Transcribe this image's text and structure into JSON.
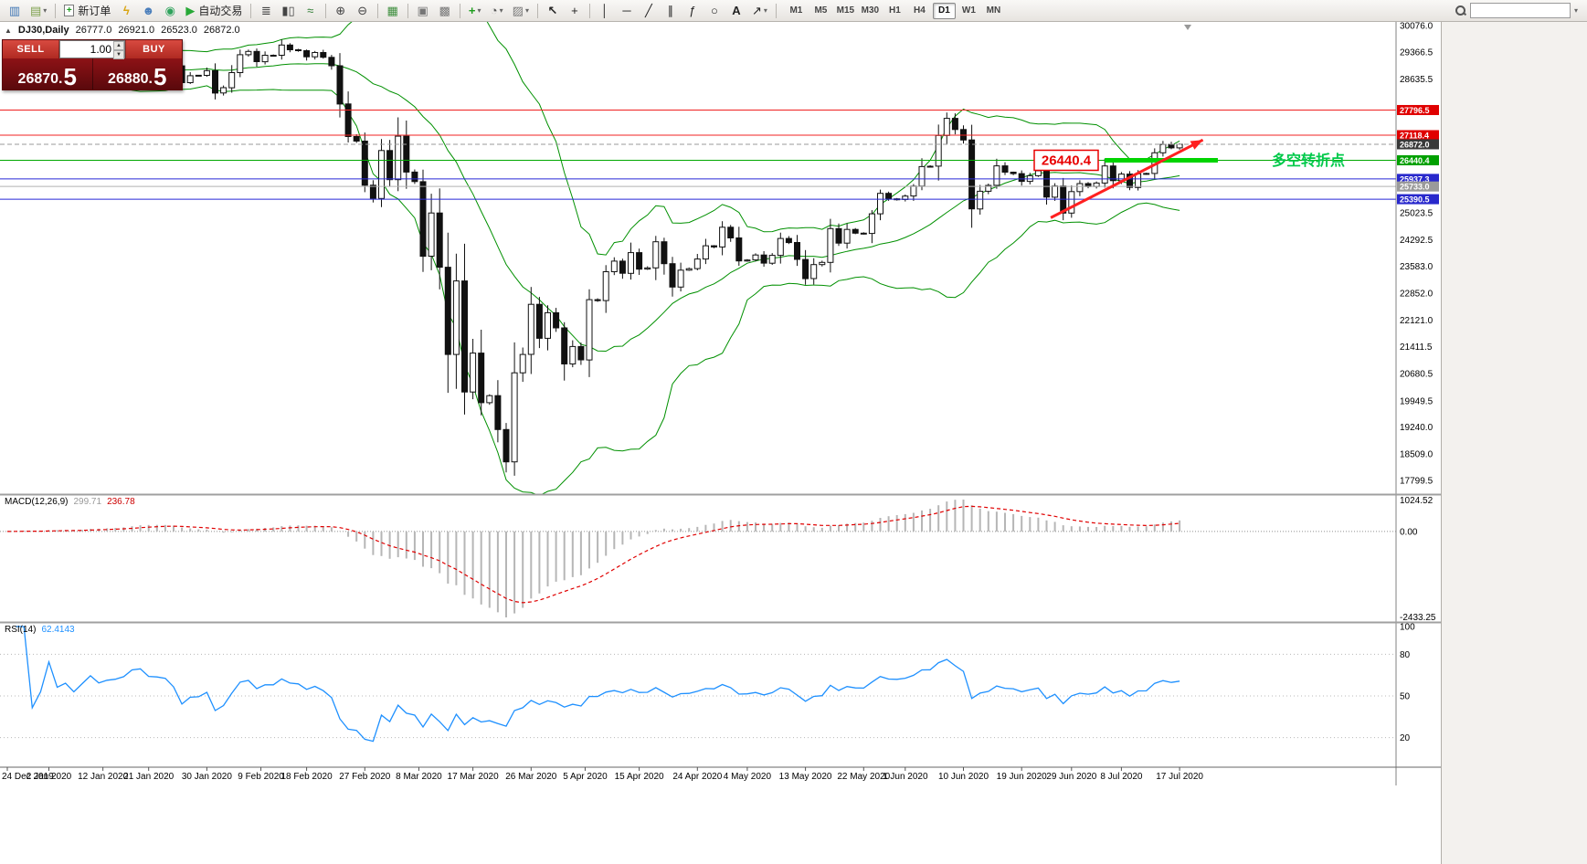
{
  "toolbar": {
    "new_order_label": "新订单",
    "autotrading_label": "自动交易",
    "timeframes": [
      "M1",
      "M5",
      "M15",
      "M30",
      "H1",
      "H4",
      "D1",
      "W1",
      "MN"
    ],
    "active_timeframe": "D1",
    "search_placeholder": ""
  },
  "chart": {
    "symbol_label": "DJ30,Daily",
    "ohlc": {
      "open": "26777.0",
      "high": "26921.0",
      "low": "26523.0",
      "close": "26872.0"
    },
    "trade_panel": {
      "sell_label": "SELL",
      "buy_label": "BUY",
      "volume": "1.00",
      "sell_price": "26870.",
      "sell_price_big": "5",
      "buy_price": "26880.",
      "buy_price_big": "5"
    },
    "hlines": [
      {
        "price": 27796.5,
        "label": "27796.5",
        "color": "#f02020",
        "tag": "#e00000"
      },
      {
        "price": 27118.4,
        "label": "27118.4",
        "color": "#f02020",
        "tag": "#e00000"
      },
      {
        "price": 26872.0,
        "label": "26872.0",
        "color": "#9a9a9a",
        "tag": "#383838",
        "dash": true
      },
      {
        "price": 26440.4,
        "label": "26440.4",
        "color": "#00a800",
        "tag": "#00a000"
      },
      {
        "price": 25937.3,
        "label": "25937.3",
        "color": "#2828d8",
        "tag": "#2828cc"
      },
      {
        "price": 25733.0,
        "label": "25733.0",
        "color": "#b0b0b0",
        "tag": "#9a9a9a"
      },
      {
        "price": 25390.5,
        "label": "25390.5",
        "color": "#2828d8",
        "tag": "#2828cc"
      }
    ],
    "annotations": {
      "price_box_text": "26440.4",
      "turning_point_text": "多空转折点",
      "box_color": "#e80000",
      "text_color": "#00c94a",
      "green_segment": {
        "price": 26440.4,
        "from_i": 132,
        "to_i": 145.6,
        "color": "#00d400"
      },
      "trend_arrow": {
        "from_i": 125.5,
        "from_price": 24890,
        "to_i": 143.8,
        "to_price": 26990,
        "color": "#ff2020"
      }
    }
  },
  "chart_data": {
    "type": "candlestick",
    "title": "DJ30 Daily",
    "y_ticks": [
      "30076.0",
      "29366.5",
      "28635.5",
      "25023.5",
      "24292.5",
      "23583.0",
      "22852.0",
      "22121.0",
      "21411.5",
      "20680.5",
      "19949.5",
      "19240.0",
      "18509.0",
      "17799.5"
    ],
    "x_labels": [
      {
        "t": "24 Dec 2019",
        "i": 0
      },
      {
        "t": "2 Jan 2020",
        "i": 5
      },
      {
        "t": "12 Jan 2020",
        "i": 11.5
      },
      {
        "t": "21 Jan 2020",
        "i": 17
      },
      {
        "t": "30 Jan 2020",
        "i": 24
      },
      {
        "t": "9 Feb 2020",
        "i": 30.5
      },
      {
        "t": "18 Feb 2020",
        "i": 36
      },
      {
        "t": "27 Feb 2020",
        "i": 43
      },
      {
        "t": "8 Mar 2020",
        "i": 49.5
      },
      {
        "t": "17 Mar 2020",
        "i": 56
      },
      {
        "t": "26 Mar 2020",
        "i": 63
      },
      {
        "t": "5 Apr 2020",
        "i": 69.5
      },
      {
        "t": "15 Apr 2020",
        "i": 76
      },
      {
        "t": "24 Apr 2020",
        "i": 83
      },
      {
        "t": "4 May 2020",
        "i": 89
      },
      {
        "t": "13 May 2020",
        "i": 96
      },
      {
        "t": "22 May 2020",
        "i": 103
      },
      {
        "t": "1 Jun 2020",
        "i": 108
      },
      {
        "t": "10 Jun 2020",
        "i": 115
      },
      {
        "t": "19 Jun 2020",
        "i": 122
      },
      {
        "t": "29 Jun 2020",
        "i": 128
      },
      {
        "t": "8 Jul 2020",
        "i": 134
      },
      {
        "t": "17 Jul 2020",
        "i": 141
      }
    ],
    "closes": [
      28515,
      28621,
      28645,
      28462,
      28538,
      28868,
      28634,
      28703,
      28583,
      28745,
      28956,
      28823,
      28907,
      28939,
      29030,
      29297,
      29348,
      29196,
      29186,
      29160,
      28989,
      28535,
      28722,
      28734,
      28859,
      28256,
      28399,
      28807,
      29290,
      29379,
      29102,
      29276,
      29276,
      29551,
      29423,
      29398,
      29232,
      29348,
      29219,
      28992,
      27960,
      27081,
      26957,
      25766,
      25409,
      26703,
      25917,
      27090,
      26121,
      25864,
      23851,
      25018,
      23553,
      21200,
      23185,
      20188,
      21237,
      19898,
      20087,
      19173,
      18300,
      20704,
      21200,
      22552,
      21636,
      22327,
      21917,
      20943,
      21413,
      21052,
      22679,
      22653,
      23433,
      23719,
      23390,
      23949,
      23504,
      23537,
      24242,
      23650,
      23018,
      23475,
      23515,
      23775,
      24133,
      24101,
      24633,
      24345,
      23723,
      23749,
      23883,
      23664,
      23875,
      24331,
      24221,
      23764,
      23247,
      23625,
      23685,
      24597,
      24206,
      24575,
      24474,
      24465,
      24995,
      25548,
      25400,
      25383,
      25475,
      25742,
      26269,
      26281,
      27110,
      27572,
      27272,
      26989,
      25128,
      25605,
      25763,
      26289,
      26119,
      26080,
      25871,
      26024,
      26156,
      25445,
      25745,
      25015,
      25595,
      25812,
      25734,
      25827,
      26287,
      25890,
      26067,
      25706,
      26075,
      26085,
      26642,
      26870,
      26777,
      26872
    ]
  },
  "macd": {
    "name": "MACD(12,26,9)",
    "value_main": "299.71",
    "value_signal": "236.78",
    "axis": [
      "1024.52",
      "0.00",
      "-2433.25"
    ]
  },
  "rsi": {
    "name": "RSI(14)",
    "value": "62.4143",
    "axis_top": "100",
    "levels": [
      "80",
      "50",
      "20"
    ]
  }
}
